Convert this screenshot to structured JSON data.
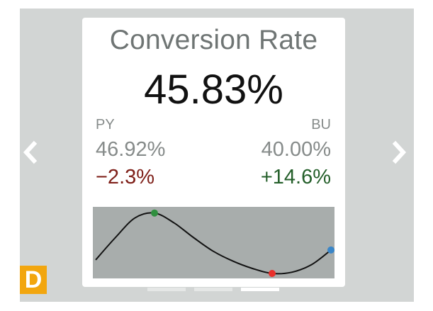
{
  "kpi_card": {
    "title": "Conversion Rate",
    "value": "45.83%",
    "comparison_left": {
      "label": "PY",
      "value": "46.92%",
      "delta": "−2.3%"
    },
    "comparison_right": {
      "label": "BU",
      "value": "40.00%",
      "delta": "+14.6%"
    }
  },
  "colors": {
    "negative": "#7f2019",
    "positive": "#245f2a",
    "max_marker": "#2f8f3f",
    "min_marker": "#e8302b",
    "last_marker": "#3a86c8",
    "badge": "#f2a60f"
  },
  "navigation": {
    "prev_icon": "chevron-left-icon",
    "next_icon": "chevron-right-icon",
    "page_count": 3,
    "active_page": 3
  },
  "badge": {
    "letter": "D"
  },
  "chart_data": {
    "type": "line",
    "x": [
      0,
      1,
      2,
      3,
      4,
      5,
      6,
      7,
      8,
      9,
      10,
      11,
      12
    ],
    "values": [
      0.22,
      0.58,
      0.9,
      0.98,
      0.82,
      0.58,
      0.36,
      0.2,
      0.08,
      0.0,
      0.02,
      0.14,
      0.38
    ],
    "markers": {
      "max_index": 3,
      "min_index": 9,
      "last_index": 12
    },
    "ylim": [
      0,
      1
    ]
  }
}
